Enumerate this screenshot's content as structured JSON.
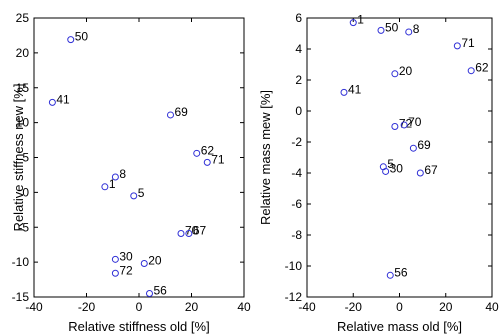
{
  "chart_data": [
    {
      "type": "scatter",
      "xlabel": "Relative stiffness old [%]",
      "ylabel": "Relative stiffness new [%]",
      "xlim": [
        -40,
        40
      ],
      "ylim": [
        -15,
        25
      ],
      "xticks": [
        -40,
        -20,
        0,
        20,
        40
      ],
      "yticks": [
        -15,
        -10,
        -5,
        0,
        5,
        10,
        15,
        20,
        25
      ],
      "marker_color": "#2f2fd6",
      "points": [
        {
          "label": "50",
          "x": -26,
          "y": 21.9
        },
        {
          "label": "41",
          "x": -33,
          "y": 12.9
        },
        {
          "label": "69",
          "x": 12,
          "y": 11.1
        },
        {
          "label": "62",
          "x": 22,
          "y": 5.6
        },
        {
          "label": "71",
          "x": 26,
          "y": 4.3
        },
        {
          "label": "1",
          "x": -13,
          "y": 0.8
        },
        {
          "label": "8",
          "x": -9,
          "y": 2.2
        },
        {
          "label": "5",
          "x": -2,
          "y": -0.5
        },
        {
          "label": "70",
          "x": 16,
          "y": -5.9
        },
        {
          "label": "67",
          "x": 19,
          "y": -5.9
        },
        {
          "label": "30",
          "x": -9,
          "y": -9.6
        },
        {
          "label": "20",
          "x": 2,
          "y": -10.2
        },
        {
          "label": "72",
          "x": -9,
          "y": -11.6
        },
        {
          "label": "56",
          "x": 4,
          "y": -14.5
        }
      ]
    },
    {
      "type": "scatter",
      "xlabel": "Relative mass old [%]",
      "ylabel": "Relative mass mew [%]",
      "xlim": [
        -40,
        40
      ],
      "ylim": [
        -12,
        6
      ],
      "xticks": [
        -40,
        -20,
        0,
        20,
        40
      ],
      "yticks": [
        -12,
        -10,
        -8,
        -6,
        -4,
        -2,
        0,
        2,
        4,
        6
      ],
      "marker_color": "#2f2fd6",
      "points": [
        {
          "label": "1",
          "x": -20,
          "y": 5.7
        },
        {
          "label": "50",
          "x": -8,
          "y": 5.2
        },
        {
          "label": "8",
          "x": 4,
          "y": 5.1
        },
        {
          "label": "71",
          "x": 25,
          "y": 4.2
        },
        {
          "label": "62",
          "x": 31,
          "y": 2.6
        },
        {
          "label": "20",
          "x": -2,
          "y": 2.4
        },
        {
          "label": "41",
          "x": -24,
          "y": 1.2
        },
        {
          "label": "72",
          "x": -2,
          "y": -1.0
        },
        {
          "label": "70",
          "x": 2,
          "y": -0.9
        },
        {
          "label": "69",
          "x": 6,
          "y": -2.4
        },
        {
          "label": "5",
          "x": -7,
          "y": -3.6
        },
        {
          "label": "30",
          "x": -6,
          "y": -3.9
        },
        {
          "label": "67",
          "x": 9,
          "y": -4.0
        },
        {
          "label": "56",
          "x": -4,
          "y": -10.6
        }
      ]
    }
  ]
}
